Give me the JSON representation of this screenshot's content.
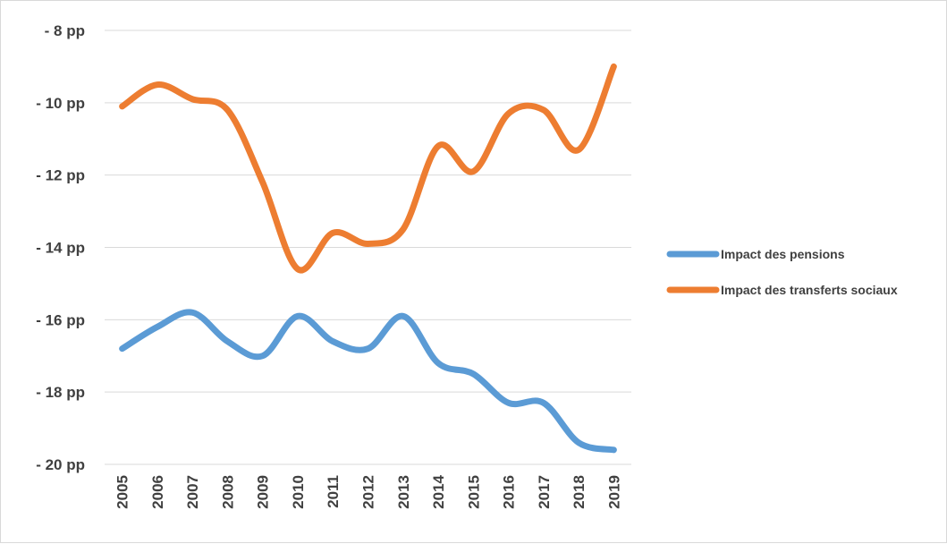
{
  "chart_data": {
    "type": "line",
    "title": "",
    "xlabel": "",
    "ylabel": "",
    "categories": [
      "2005",
      "2006",
      "2007",
      "2008",
      "2009",
      "2010",
      "2011",
      "2012",
      "2013",
      "2014",
      "2015",
      "2016",
      "2017",
      "2018",
      "2019"
    ],
    "ylim": [
      -20,
      -8
    ],
    "yticks": [
      -8,
      -10,
      -12,
      -14,
      -16,
      -18,
      -20
    ],
    "ytick_labels": [
      "- 8 pp",
      "- 10 pp",
      "- 12 pp",
      "- 14 pp",
      "- 16 pp",
      "- 18 pp",
      "- 20 pp"
    ],
    "grid": true,
    "legend_position": "right",
    "series": [
      {
        "name": "Impact des pensions",
        "color": "#5b9bd5",
        "values": [
          -16.8,
          -16.2,
          -15.8,
          -16.6,
          -17.0,
          -15.9,
          -16.6,
          -16.8,
          -15.9,
          -17.2,
          -17.5,
          -18.3,
          -18.3,
          -19.4,
          -19.6
        ]
      },
      {
        "name": "Impact des transferts sociaux",
        "color": "#ed7d31",
        "values": [
          -10.1,
          -9.5,
          -9.9,
          -10.2,
          -12.2,
          -14.6,
          -13.6,
          -13.9,
          -13.5,
          -11.2,
          -11.9,
          -10.3,
          -10.2,
          -11.3,
          -9.0
        ]
      }
    ]
  }
}
